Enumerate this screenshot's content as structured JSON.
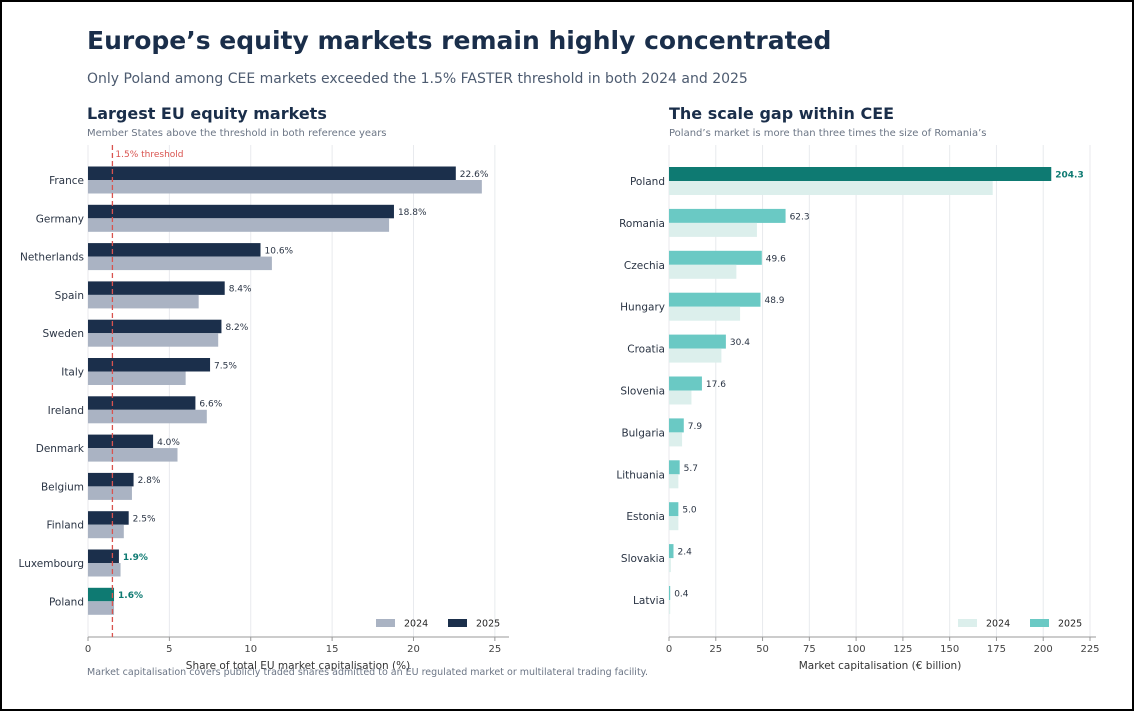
{
  "header": {
    "title": "Europe’s equity markets remain highly concentrated",
    "subtitle": "Only Poland among CEE markets exceeded the 1.5% FASTER threshold in both 2024 and 2025"
  },
  "footnote": "Market capitalisation covers publicly traded shares admitted to an EU regulated market or multilateral trading facility.",
  "colors": {
    "left_2024": "#aab3c3",
    "left_2025": "#1b2f4b",
    "left_highlight": "#0e7a72",
    "threshold": "#d9534f",
    "right_2024": "#dcefec",
    "right_2025": "#6ac9c4",
    "right_highlight": "#0e7a72",
    "text_dark": "#1a2e4a"
  },
  "chart_data": [
    {
      "type": "bar",
      "orientation": "horizontal",
      "title": "Largest EU equity markets",
      "subtitle": "Member States above the threshold in both reference years",
      "xlabel": "Share of total EU market capitalisation (%)",
      "ylabel": "",
      "xlim": [
        0,
        25.5
      ],
      "xticks": [
        0,
        5,
        10,
        15,
        20,
        25
      ],
      "grid": true,
      "legend_position": "bottom-right",
      "threshold": {
        "value": 1.5,
        "label": "1.5% threshold"
      },
      "categories": [
        "France",
        "Germany",
        "Netherlands",
        "Spain",
        "Sweden",
        "Italy",
        "Ireland",
        "Denmark",
        "Belgium",
        "Finland",
        "Luxembourg",
        "Poland"
      ],
      "series": [
        {
          "name": "2024",
          "values": [
            24.2,
            18.5,
            11.3,
            6.8,
            8.0,
            6.0,
            7.3,
            5.5,
            2.7,
            2.2,
            2.0,
            1.6
          ]
        },
        {
          "name": "2025",
          "values": [
            22.6,
            18.8,
            10.6,
            8.4,
            8.2,
            7.5,
            6.6,
            4.0,
            2.8,
            2.5,
            1.9,
            1.6
          ]
        }
      ],
      "labels_2025": [
        "22.6%",
        "18.8%",
        "10.6%",
        "8.4%",
        "8.2%",
        "7.5%",
        "6.6%",
        "4.0%",
        "2.8%",
        "2.5%",
        "1.9%",
        "1.6%"
      ],
      "highlight_labels": [
        "Luxembourg",
        "Poland"
      ],
      "highlight_bar": "Poland"
    },
    {
      "type": "bar",
      "orientation": "horizontal",
      "title": "The scale gap within CEE",
      "subtitle": "Poland’s market is more than three times the size of Romania’s",
      "xlabel": "Market capitalisation (€ billion)",
      "ylabel": "",
      "xlim": [
        0,
        225
      ],
      "xticks": [
        0,
        25,
        50,
        75,
        100,
        125,
        150,
        175,
        200,
        225
      ],
      "grid": true,
      "legend_position": "bottom-right",
      "categories": [
        "Poland",
        "Romania",
        "Czechia",
        "Hungary",
        "Croatia",
        "Slovenia",
        "Bulgaria",
        "Lithuania",
        "Estonia",
        "Slovakia",
        "Latvia"
      ],
      "series": [
        {
          "name": "2024",
          "values": [
            173,
            47,
            36,
            38,
            28,
            12,
            7,
            5,
            5,
            1,
            0.4
          ]
        },
        {
          "name": "2025",
          "values": [
            204.3,
            62.3,
            49.6,
            48.9,
            30.4,
            17.6,
            7.9,
            5.7,
            5.0,
            2.4,
            0.4
          ]
        }
      ],
      "labels_2025": [
        "204.3",
        "62.3",
        "49.6",
        "48.9",
        "30.4",
        "17.6",
        "7.9",
        "5.7",
        "5.0",
        "2.4",
        "0.4"
      ],
      "highlight_labels": [
        "Poland"
      ],
      "highlight_bar": "Poland"
    }
  ]
}
